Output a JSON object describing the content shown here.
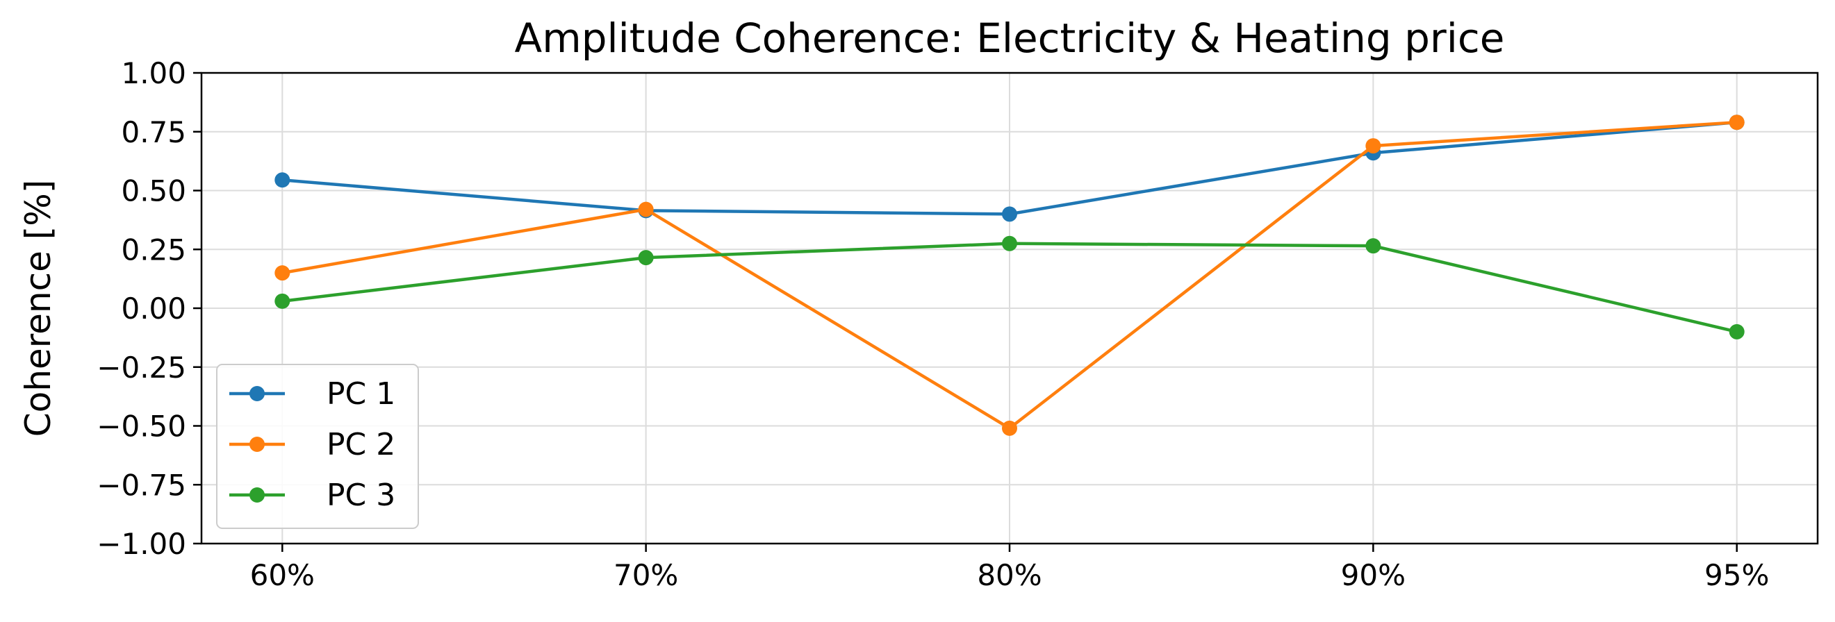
{
  "chart_data": {
    "type": "line",
    "title": "Amplitude Coherence: Electricity & Heating price",
    "xlabel": "",
    "ylabel": "Coherence [%]",
    "categories": [
      "60%",
      "70%",
      "80%",
      "90%",
      "95%"
    ],
    "ylim": [
      -1.0,
      1.0
    ],
    "yticks": [
      "−1.00",
      "−0.75",
      "−0.50",
      "−0.25",
      "0.00",
      "0.25",
      "0.50",
      "0.75",
      "1.00"
    ],
    "grid": true,
    "legend_position": "lower-left",
    "series": [
      {
        "name": "PC 1",
        "color": "#1f77b4",
        "values": [
          0.545,
          0.415,
          0.4,
          0.66,
          0.79
        ]
      },
      {
        "name": "PC 2",
        "color": "#ff7f0e",
        "values": [
          0.15,
          0.42,
          -0.51,
          0.69,
          0.79
        ]
      },
      {
        "name": "PC 3",
        "color": "#2ca02c",
        "values": [
          0.03,
          0.215,
          0.275,
          0.265,
          -0.1
        ]
      }
    ]
  }
}
